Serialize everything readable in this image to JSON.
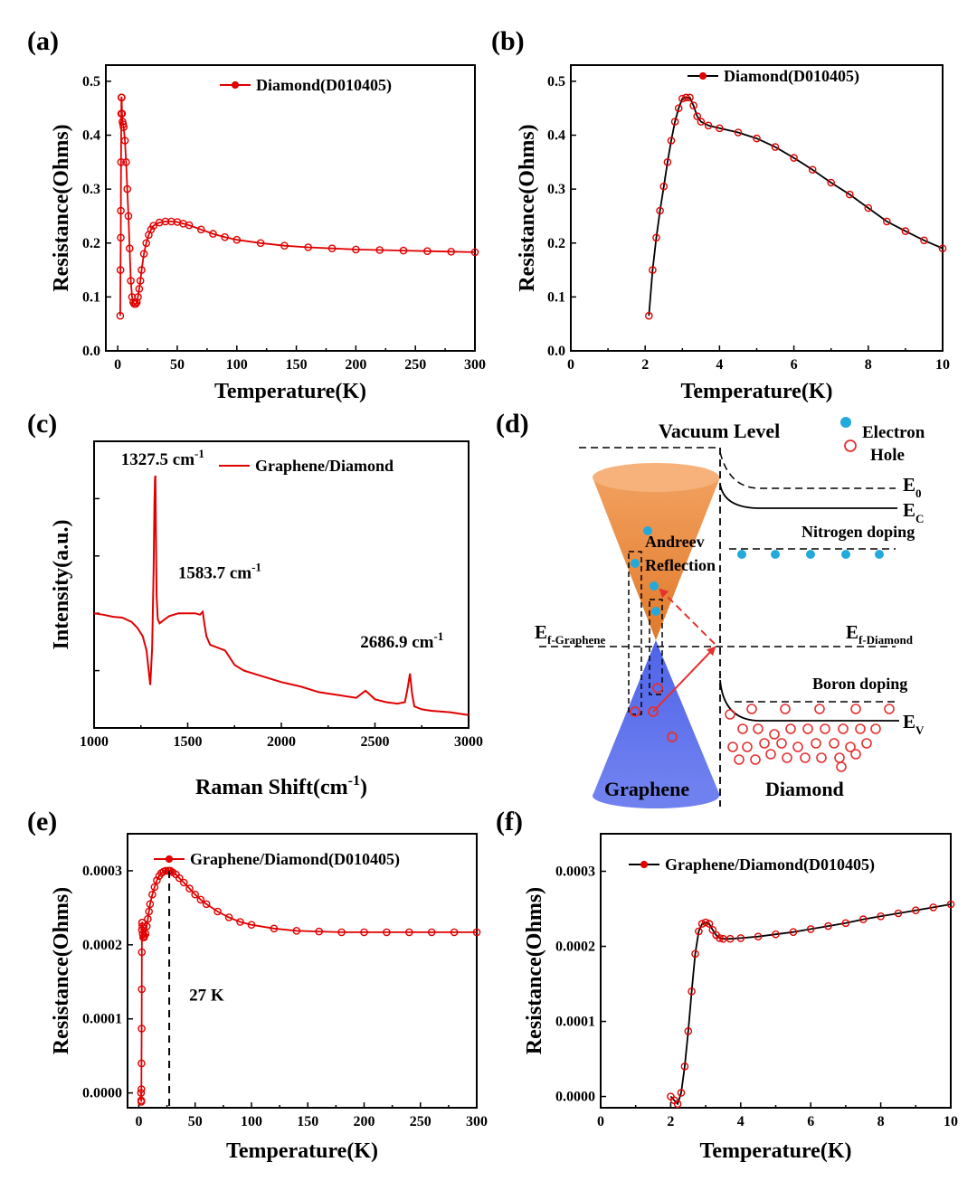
{
  "panels": {
    "a": "(a)",
    "b": "(b)",
    "c": "(c)",
    "d": "(d)",
    "e": "(e)",
    "f": "(f)"
  },
  "colors": {
    "data": "#e00000",
    "line": "#000000",
    "electron": "#22aadd",
    "hole": "#e53030",
    "cone_top": "#f08a3c",
    "cone_bottom": "#4a5ee6"
  },
  "chart_data": [
    {
      "id": "a",
      "type": "scatter",
      "xlabel": "Temperature(K)",
      "ylabel": "Resistance(Ohms)",
      "xlim": [
        -10,
        300
      ],
      "ylim": [
        0,
        0.53
      ],
      "xticks": [
        0,
        50,
        100,
        150,
        200,
        250,
        300
      ],
      "yticks": [
        0.0,
        0.1,
        0.2,
        0.3,
        0.4,
        0.5
      ],
      "yfmt": 1,
      "legend": "Diamond(D010405)",
      "series": [
        {
          "name": "Diamond(D010405)",
          "x": [
            2.1,
            2.3,
            2.5,
            2.6,
            2.8,
            3.0,
            3.1,
            3.3,
            3.6,
            4.0,
            4.5,
            5,
            6,
            7,
            8,
            9,
            10,
            11,
            12,
            13,
            14,
            15,
            16,
            17,
            18,
            19,
            20,
            22,
            24,
            26,
            28,
            30,
            35,
            40,
            45,
            50,
            55,
            60,
            70,
            80,
            90,
            100,
            120,
            140,
            160,
            180,
            200,
            220,
            240,
            260,
            280,
            300
          ],
          "y": [
            0.065,
            0.15,
            0.21,
            0.26,
            0.35,
            0.44,
            0.47,
            0.47,
            0.44,
            0.425,
            0.42,
            0.415,
            0.39,
            0.35,
            0.3,
            0.25,
            0.19,
            0.13,
            0.1,
            0.09,
            0.087,
            0.087,
            0.09,
            0.1,
            0.115,
            0.13,
            0.15,
            0.18,
            0.2,
            0.215,
            0.225,
            0.232,
            0.238,
            0.24,
            0.24,
            0.239,
            0.236,
            0.233,
            0.225,
            0.217,
            0.211,
            0.206,
            0.2,
            0.195,
            0.192,
            0.19,
            0.188,
            0.187,
            0.186,
            0.185,
            0.184,
            0.183
          ]
        }
      ]
    },
    {
      "id": "b",
      "type": "line",
      "xlabel": "Temperature(K)",
      "ylabel": "Resistance(Ohms)",
      "xlim": [
        0,
        10
      ],
      "ylim": [
        0,
        0.53
      ],
      "xticks": [
        0,
        2,
        4,
        6,
        8,
        10
      ],
      "yticks": [
        0.0,
        0.1,
        0.2,
        0.3,
        0.4,
        0.5
      ],
      "yfmt": 1,
      "legend": "Diamond(D010405)",
      "series": [
        {
          "name": "Diamond(D010405)",
          "x": [
            2.1,
            2.2,
            2.3,
            2.4,
            2.5,
            2.6,
            2.7,
            2.8,
            2.9,
            3.0,
            3.1,
            3.2,
            3.3,
            3.4,
            3.5,
            3.7,
            4.0,
            4.5,
            5.0,
            5.5,
            6.0,
            6.5,
            7.0,
            7.5,
            8.0,
            8.5,
            9.0,
            9.5,
            10.0
          ],
          "y": [
            0.065,
            0.15,
            0.21,
            0.26,
            0.305,
            0.35,
            0.39,
            0.425,
            0.45,
            0.468,
            0.47,
            0.47,
            0.455,
            0.435,
            0.425,
            0.418,
            0.413,
            0.405,
            0.394,
            0.378,
            0.358,
            0.336,
            0.312,
            0.29,
            0.265,
            0.24,
            0.222,
            0.205,
            0.19
          ]
        }
      ]
    },
    {
      "id": "c",
      "type": "line",
      "xlabel": "Raman Shift(cm",
      "xlabel_sup": "-1",
      "xlabel_end": ")",
      "ylabel": "Intensity(a.u.)",
      "xlim": [
        1000,
        3000
      ],
      "ylim": [
        0,
        100
      ],
      "xticks": [
        1000,
        1500,
        2000,
        2500,
        3000
      ],
      "hide_yticklabels": true,
      "legend": "Graphene/Diamond",
      "annotations": [
        {
          "text": "1327.5 cm",
          "sup": "-1",
          "x": 1327.5,
          "y": 88
        },
        {
          "text": "1583.7 cm",
          "sup": "-1",
          "x": 1583.7,
          "y": 49
        },
        {
          "text": "2686.9 cm",
          "sup": "-1",
          "x": 2686.9,
          "y": 25
        }
      ],
      "series": [
        {
          "name": "Graphene/Diamond",
          "x": [
            1000,
            1050,
            1100,
            1150,
            1200,
            1230,
            1260,
            1280,
            1290,
            1300,
            1310,
            1318,
            1322,
            1325,
            1327.5,
            1330,
            1334,
            1340,
            1350,
            1370,
            1400,
            1450,
            1500,
            1540,
            1565,
            1580,
            1590,
            1600,
            1620,
            1660,
            1700,
            1750,
            1800,
            1900,
            2000,
            2100,
            2200,
            2300,
            2400,
            2450,
            2500,
            2560,
            2620,
            2660,
            2675,
            2686.9,
            2698,
            2710,
            2750,
            2800,
            2900,
            3000
          ],
          "y": [
            40,
            39.5,
            38.8,
            38.5,
            37,
            35,
            32,
            27,
            21,
            15,
            28,
            55,
            78,
            87,
            88,
            70,
            46,
            38,
            36.5,
            37.5,
            39,
            40,
            40,
            40,
            39.5,
            40.5,
            36,
            32,
            29,
            28,
            27,
            22,
            20,
            18,
            16,
            14.5,
            12.5,
            11.5,
            10.5,
            13,
            10,
            9,
            8.5,
            9,
            14,
            19,
            12,
            7.5,
            6.5,
            6,
            5.5,
            4.5
          ]
        }
      ]
    },
    {
      "id": "e",
      "type": "scatter",
      "xlabel": "Temperature(K)",
      "ylabel": "Resistance(Ohms)",
      "xlim": [
        -10,
        300
      ],
      "ylim": [
        -2e-05,
        0.00035
      ],
      "xticks": [
        0,
        50,
        100,
        150,
        200,
        250,
        300
      ],
      "yticks": [
        0.0,
        0.0001,
        0.0002,
        0.0003
      ],
      "yfmt": 4,
      "legend": "Graphene/Diamond(D010405)",
      "annotation": {
        "text": "27 K",
        "x": 27
      },
      "series": [
        {
          "name": "Graphene/Diamond(D010405)",
          "x": [
            2.0,
            2.1,
            2.2,
            2.3,
            2.4,
            2.5,
            2.6,
            2.7,
            2.8,
            2.9,
            3.0,
            3.2,
            3.5,
            4.0,
            4.5,
            5,
            6,
            7,
            8,
            9,
            10,
            12,
            14,
            16,
            18,
            20,
            22,
            24,
            26,
            27,
            28,
            30,
            33,
            36,
            40,
            45,
            50,
            55,
            60,
            70,
            80,
            90,
            100,
            120,
            140,
            160,
            180,
            200,
            220,
            240,
            260,
            280,
            300
          ],
          "y": [
            0.0,
            -1e-05,
            -1.2e-05,
            5e-06,
            4e-05,
            8.7e-05,
            0.00014,
            0.00019,
            0.00022,
            0.00023,
            0.00023,
            0.000225,
            0.000215,
            0.00021,
            0.00021,
            0.000212,
            0.000215,
            0.000225,
            0.000235,
            0.000245,
            0.000255,
            0.000268,
            0.000278,
            0.000287,
            0.000293,
            0.000297,
            0.000299,
            0.0003,
            0.0003,
            0.0003,
            0.0003,
            0.000298,
            0.000295,
            0.00029,
            0.000284,
            0.000276,
            0.000268,
            0.000261,
            0.000255,
            0.000245,
            0.000237,
            0.000231,
            0.000227,
            0.000222,
            0.000219,
            0.000218,
            0.000217,
            0.000217,
            0.000217,
            0.000217,
            0.000217,
            0.000217,
            0.000217
          ]
        }
      ]
    },
    {
      "id": "f",
      "type": "line",
      "xlabel": "Temperature(K)",
      "ylabel": "Resistance(Ohms)",
      "xlim": [
        0,
        10
      ],
      "ylim": [
        -1.5e-05,
        0.00035
      ],
      "xticks": [
        0,
        2,
        4,
        6,
        8,
        10
      ],
      "yticks": [
        0.0,
        0.0001,
        0.0002,
        0.0003
      ],
      "yfmt": 4,
      "legend": "Graphene/Diamond(D010405)",
      "series": [
        {
          "name": "Graphene/Diamond(D010405)",
          "x": [
            2.0,
            2.1,
            2.2,
            2.3,
            2.4,
            2.5,
            2.6,
            2.7,
            2.8,
            2.9,
            3.0,
            3.1,
            3.2,
            3.3,
            3.4,
            3.5,
            3.7,
            4.0,
            4.5,
            5.0,
            5.5,
            6.0,
            6.5,
            7.0,
            7.5,
            8.0,
            8.5,
            9.0,
            9.5,
            10.0
          ],
          "y": [
            0.0,
            -5e-06,
            -1e-05,
            5e-06,
            4e-05,
            8.7e-05,
            0.00014,
            0.00019,
            0.00022,
            0.00023,
            0.000232,
            0.00023,
            0.000222,
            0.000215,
            0.000211,
            0.00021,
            0.00021,
            0.000211,
            0.000213,
            0.000216,
            0.000219,
            0.000223,
            0.000227,
            0.000231,
            0.000236,
            0.00024,
            0.000244,
            0.000248,
            0.000252,
            0.000256
          ]
        }
      ]
    }
  ],
  "diagram": {
    "title": "Vacuum Level",
    "legend_electron": "Electron",
    "legend_hole": "Hole",
    "e0": "E",
    "e0_sub": "0",
    "ec": "E",
    "ec_sub": "C",
    "ev": "E",
    "ev_sub": "V",
    "ef_graphene": "E",
    "ef_graphene_sub": "f-Graphene",
    "ef_diamond": "E",
    "ef_diamond_sub": "f-Diamond",
    "nitrogen": "Nitrogen doping",
    "boron": "Boron doping",
    "andreev_1": "Andreev",
    "andreev_2": "Reflection",
    "graphene": "Graphene",
    "diamond": "Diamond"
  }
}
